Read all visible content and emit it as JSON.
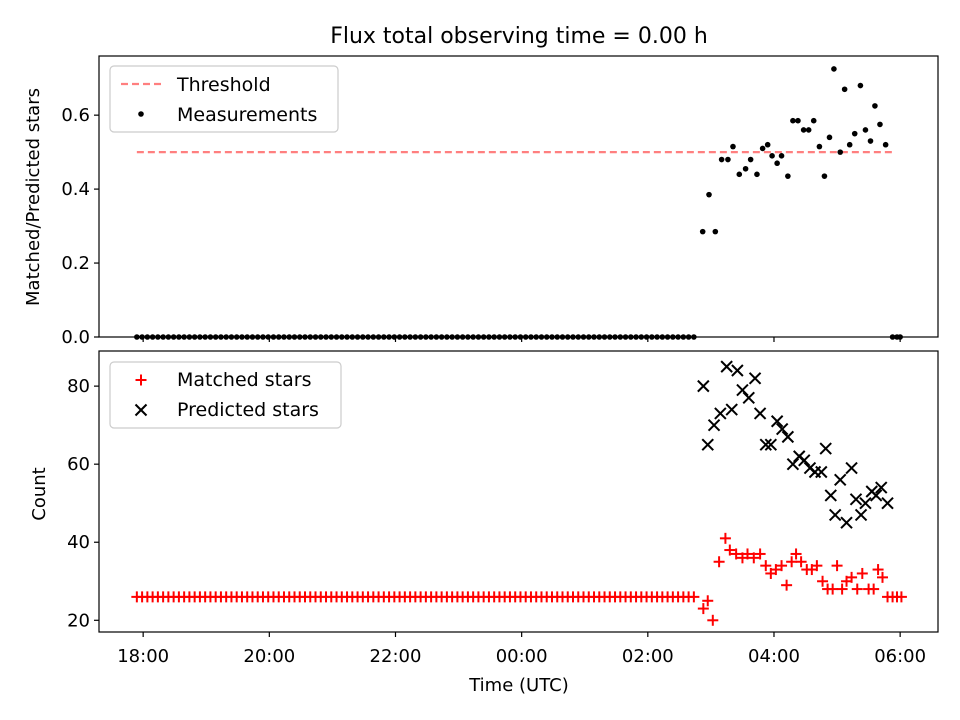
{
  "figure": {
    "title": "Flux total observing time = 0.00 h",
    "xlabel": "Time (UTC)",
    "x_ticks": [
      "18:00",
      "20:00",
      "22:00",
      "00:00",
      "02:00",
      "04:00",
      "06:00"
    ]
  },
  "colors": {
    "threshold": "#ff7f7f",
    "measurements": "#000000",
    "matched": "#ff0000",
    "predicted": "#000000"
  },
  "chart_data": [
    {
      "type": "scatter",
      "panel": "top",
      "x_unit": "hours since 18:00 UTC",
      "xlim": [
        -0.7,
        12.6
      ],
      "ylabel": "Matched/Predicted stars",
      "ylim": [
        0,
        0.76
      ],
      "yticks": [
        0.0,
        0.2,
        0.4,
        0.6
      ],
      "ytick_labels": [
        "0.0",
        "0.2",
        "0.4",
        "0.6"
      ],
      "legend_position": "top-left",
      "threshold": {
        "name": "Threshold",
        "y": 0.5,
        "x_range": [
          -0.1,
          11.9
        ]
      },
      "series": [
        {
          "name": "Measurements",
          "zero_run": {
            "x_start": -0.1,
            "x_end": 8.8,
            "step": 0.0833,
            "y": 0
          },
          "points": [
            [
              8.87,
              0.285
            ],
            [
              8.97,
              0.385
            ],
            [
              9.07,
              0.285
            ],
            [
              9.17,
              0.48
            ],
            [
              9.27,
              0.48
            ],
            [
              9.35,
              0.515
            ],
            [
              9.45,
              0.44
            ],
            [
              9.55,
              0.455
            ],
            [
              9.63,
              0.48
            ],
            [
              9.73,
              0.44
            ],
            [
              9.82,
              0.51
            ],
            [
              9.9,
              0.52
            ],
            [
              9.97,
              0.49
            ],
            [
              10.05,
              0.47
            ],
            [
              10.12,
              0.49
            ],
            [
              10.22,
              0.435
            ],
            [
              10.3,
              0.585
            ],
            [
              10.38,
              0.585
            ],
            [
              10.47,
              0.56
            ],
            [
              10.55,
              0.56
            ],
            [
              10.63,
              0.585
            ],
            [
              10.72,
              0.515
            ],
            [
              10.8,
              0.435
            ],
            [
              10.88,
              0.54
            ],
            [
              10.95,
              0.725
            ],
            [
              11.05,
              0.5
            ],
            [
              11.12,
              0.67
            ],
            [
              11.2,
              0.52
            ],
            [
              11.28,
              0.55
            ],
            [
              11.37,
              0.68
            ],
            [
              11.45,
              0.56
            ],
            [
              11.53,
              0.53
            ],
            [
              11.6,
              0.625
            ],
            [
              11.68,
              0.575
            ],
            [
              11.77,
              0.52
            ],
            [
              11.88,
              0
            ],
            [
              11.95,
              0
            ],
            [
              12.0,
              0
            ]
          ]
        }
      ]
    },
    {
      "type": "scatter",
      "panel": "bottom",
      "x_unit": "hours since 18:00 UTC",
      "xlim": [
        -0.7,
        12.6
      ],
      "ylabel": "Count",
      "ylim": [
        17,
        89
      ],
      "yticks": [
        20,
        40,
        60,
        80
      ],
      "ytick_labels": [
        "20",
        "40",
        "60",
        "80"
      ],
      "legend_position": "top-left",
      "series": [
        {
          "name": "Matched stars",
          "marker": "plus",
          "flat_run": {
            "x_start": -0.1,
            "x_end": 8.8,
            "step": 0.0833,
            "y": 26
          },
          "points": [
            [
              8.88,
              23
            ],
            [
              8.95,
              25
            ],
            [
              9.03,
              20
            ],
            [
              9.13,
              35
            ],
            [
              9.23,
              41
            ],
            [
              9.3,
              38
            ],
            [
              9.4,
              37
            ],
            [
              9.5,
              36
            ],
            [
              9.58,
              37
            ],
            [
              9.68,
              36
            ],
            [
              9.78,
              37
            ],
            [
              9.87,
              34
            ],
            [
              9.95,
              32
            ],
            [
              10.03,
              33
            ],
            [
              10.12,
              34
            ],
            [
              10.2,
              29
            ],
            [
              10.28,
              35
            ],
            [
              10.35,
              37
            ],
            [
              10.43,
              35
            ],
            [
              10.52,
              33
            ],
            [
              10.6,
              33
            ],
            [
              10.68,
              34
            ],
            [
              10.77,
              30
            ],
            [
              10.85,
              28
            ],
            [
              10.93,
              28
            ],
            [
              11.0,
              34
            ],
            [
              11.08,
              28
            ],
            [
              11.15,
              30
            ],
            [
              11.23,
              31
            ],
            [
              11.32,
              28
            ],
            [
              11.4,
              32
            ],
            [
              11.5,
              28
            ],
            [
              11.58,
              28
            ],
            [
              11.65,
              33
            ],
            [
              11.72,
              31
            ],
            [
              11.8,
              26
            ],
            [
              11.88,
              26
            ],
            [
              11.95,
              26
            ],
            [
              12.02,
              26
            ]
          ]
        },
        {
          "name": "Predicted stars",
          "marker": "x",
          "points": [
            [
              8.88,
              80
            ],
            [
              8.95,
              65
            ],
            [
              9.05,
              70
            ],
            [
              9.15,
              73
            ],
            [
              9.25,
              85
            ],
            [
              9.33,
              74
            ],
            [
              9.42,
              84
            ],
            [
              9.5,
              79
            ],
            [
              9.6,
              77
            ],
            [
              9.7,
              82
            ],
            [
              9.78,
              73
            ],
            [
              9.87,
              65
            ],
            [
              9.95,
              65
            ],
            [
              10.05,
              71
            ],
            [
              10.13,
              69
            ],
            [
              10.22,
              67
            ],
            [
              10.3,
              60
            ],
            [
              10.4,
              62
            ],
            [
              10.48,
              61
            ],
            [
              10.57,
              59
            ],
            [
              10.65,
              58
            ],
            [
              10.75,
              58
            ],
            [
              10.82,
              64
            ],
            [
              10.9,
              52
            ],
            [
              10.97,
              47
            ],
            [
              11.05,
              56
            ],
            [
              11.15,
              45
            ],
            [
              11.23,
              59
            ],
            [
              11.3,
              51
            ],
            [
              11.38,
              47
            ],
            [
              11.45,
              50
            ],
            [
              11.55,
              53
            ],
            [
              11.62,
              52
            ],
            [
              11.7,
              54
            ],
            [
              11.8,
              50
            ]
          ]
        }
      ]
    }
  ]
}
